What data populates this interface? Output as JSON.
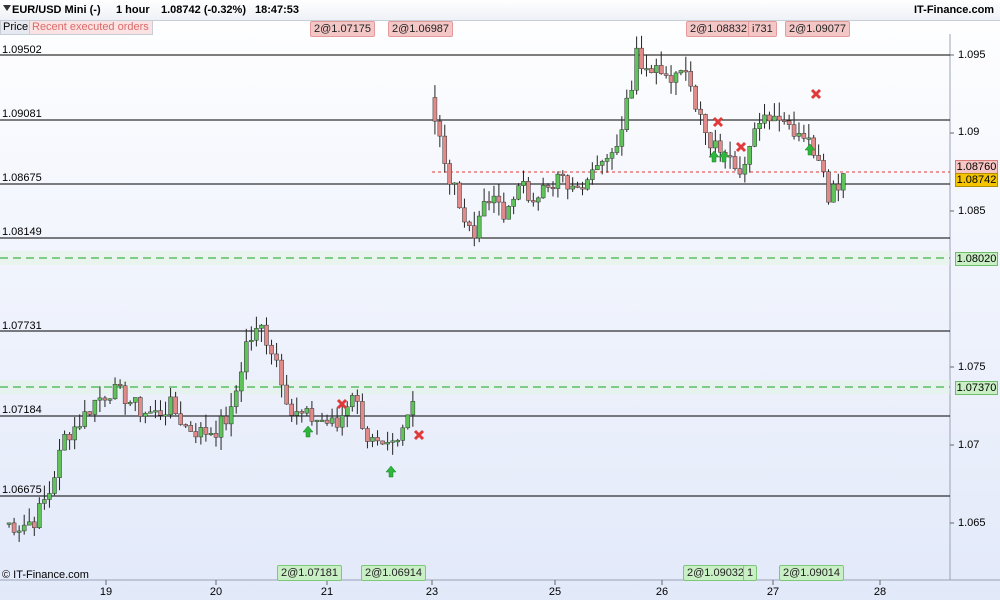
{
  "header": {
    "instrument": "EUR/USD Mini (-)",
    "timeframe": "1 hour",
    "quote": "1.08742 (-0.32%)",
    "time": "18:47:53",
    "brand": "IT-Finance.com"
  },
  "tabs": {
    "price": "Price",
    "orders": "Recent executed orders"
  },
  "order_tags_top": [
    "2@1.07175",
    "2@1.06987",
    "2@1.08832",
    "i731",
    "2@1.09077"
  ],
  "order_tags_bottom": [
    "2@1.07181",
    "2@1.06914",
    "2@1.09032",
    "1",
    "2@1.09014"
  ],
  "levels_left": [
    "1.09502",
    "1.09081",
    "1.08675",
    "1.08149",
    "1.07731",
    "1.07184",
    "1.06675"
  ],
  "y_axis": [
    "1.095",
    "1.09",
    "1.085",
    "1.075",
    "1.07",
    "1.065"
  ],
  "price_boxes": {
    "sell_order": "1.08760",
    "current": "1.08742",
    "upper_green": "1.08020",
    "lower_green": "1.07370"
  },
  "dates": [
    "19",
    "20",
    "21",
    "23",
    "25",
    "26",
    "27",
    "28"
  ],
  "copyright": "© IT-Finance.com",
  "colors": {
    "bull": "#5fc25a",
    "bear": "#e08a8a",
    "sell_line": "#e23a3a",
    "buy_line": "#3fb44a",
    "current_box": "#f4c400"
  },
  "chart_data": {
    "type": "candlestick",
    "ylim": [
      1.0625,
      1.0975
    ],
    "segments": [
      {
        "name": "week1",
        "candles_approx_close": [
          1.065,
          1.0648,
          1.0652,
          1.067,
          1.0705,
          1.0715,
          1.0728,
          1.0735,
          1.0731,
          1.0722,
          1.072,
          1.0725,
          1.0712,
          1.0708,
          1.071,
          1.072,
          1.0765,
          1.0775,
          1.0755,
          1.072,
          1.0718,
          1.0716,
          1.0712,
          1.0735,
          1.0705,
          1.0695,
          1.07,
          1.0728
        ]
      },
      {
        "name": "week2",
        "candles_approx_close": [
          1.092,
          1.088,
          1.0855,
          1.0835,
          1.086,
          1.085,
          1.0865,
          1.086,
          1.087,
          1.0868,
          1.086,
          1.0875,
          1.0885,
          1.09,
          1.095,
          1.094,
          1.0935,
          1.0945,
          1.092,
          1.0895,
          1.0885,
          1.087,
          1.0905,
          1.0908,
          1.0905,
          1.09,
          1.089,
          1.086,
          1.0874
        ]
      }
    ],
    "markers_sell": [
      1.072,
      1.06987,
      1.08832,
      1.088,
      1.09077
    ],
    "markers_buy": [
      1.07181,
      1.06914,
      1.087,
      1.087,
      1.0878
    ]
  }
}
